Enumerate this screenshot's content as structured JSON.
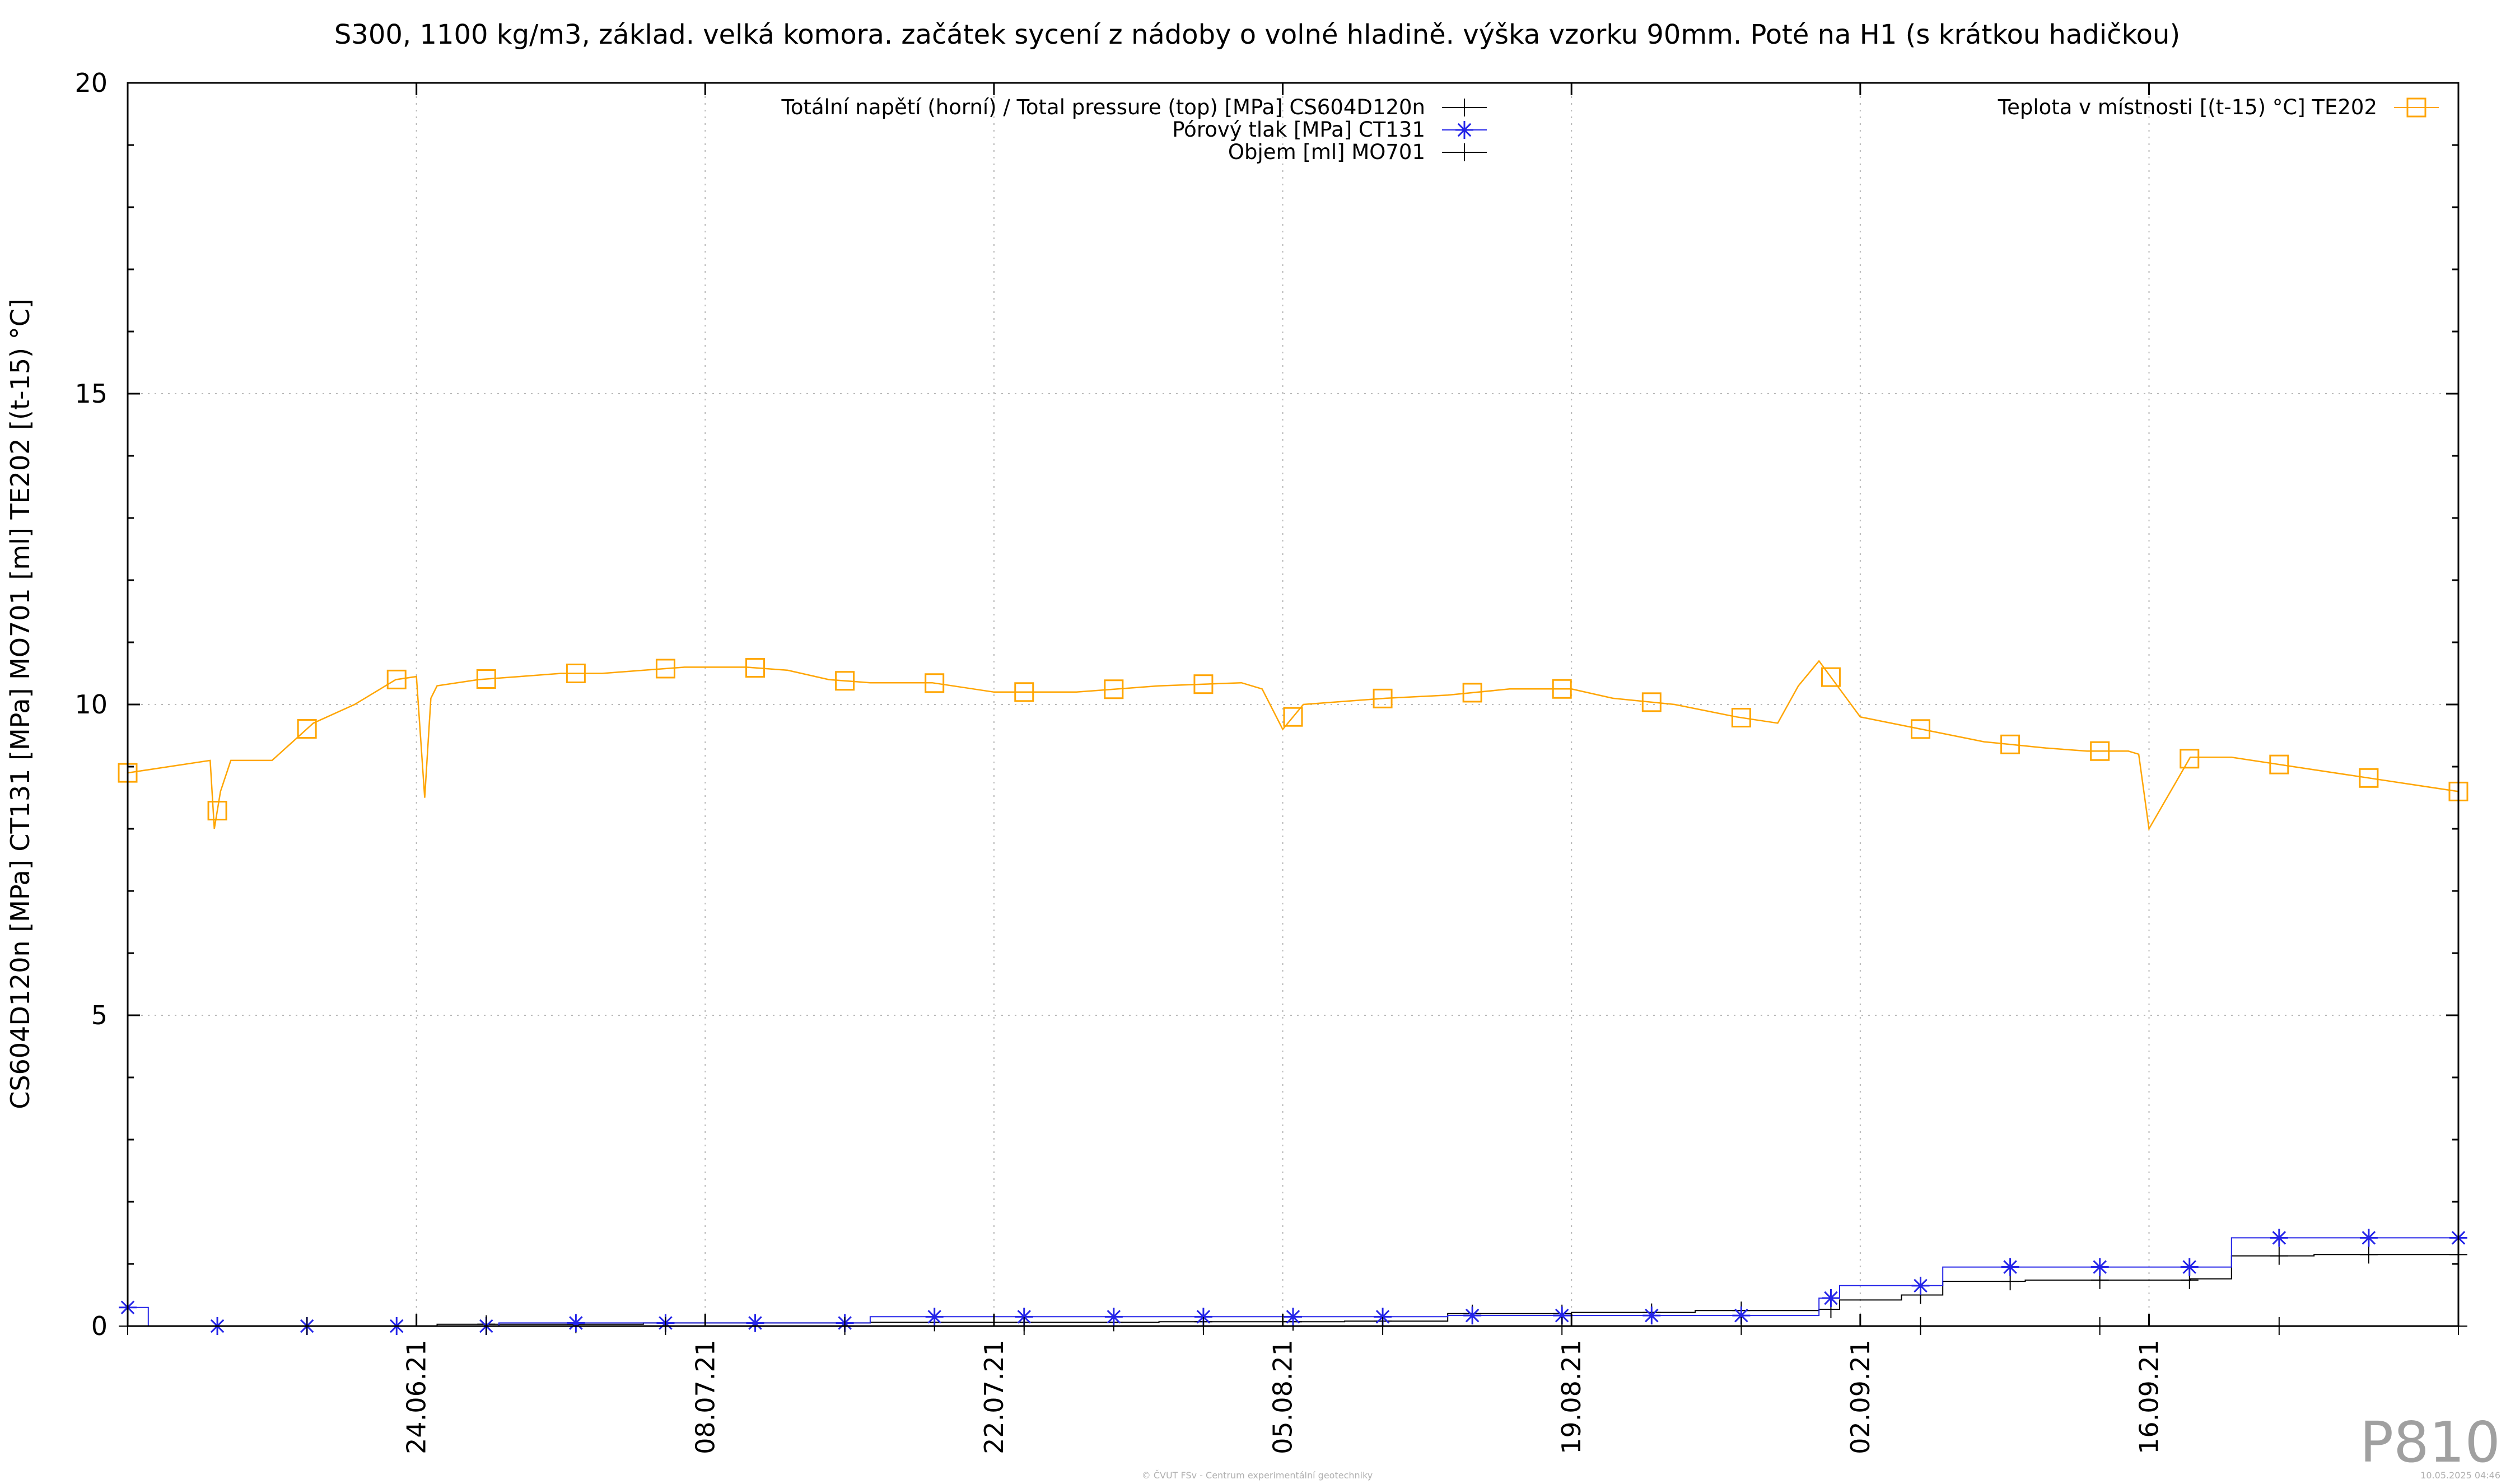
{
  "chart_data": {
    "type": "line",
    "title": "S300, 1100 kg/m3, základ. velká komora. začátek sycení z nádoby o volné hladině. výška vzorku 90mm. Poté na H1 (s krátkou hadičkou)",
    "ylabel": "CS604D120n [MPa] CT131 [MPa] MO701 [ml] TE202 [(t-15) °C]",
    "xlabel": "",
    "ylim": [
      0,
      20
    ],
    "xlim": [
      "2021-06-10",
      "2021-10-01"
    ],
    "y_ticks": [
      "0",
      "5",
      "10",
      "15",
      "20"
    ],
    "x_ticks": [
      {
        "date": "2021-06-24",
        "label": "24.06.21"
      },
      {
        "date": "2021-07-08",
        "label": "08.07.21"
      },
      {
        "date": "2021-07-22",
        "label": "22.07.21"
      },
      {
        "date": "2021-08-05",
        "label": "05.08.21"
      },
      {
        "date": "2021-08-19",
        "label": "19.08.21"
      },
      {
        "date": "2021-09-02",
        "label": "02.09.21"
      },
      {
        "date": "2021-09-16",
        "label": "16.09.21"
      }
    ],
    "grid": true,
    "legend_left_position": "top-center",
    "legend_right_position": "top-right",
    "series": [
      {
        "name": "Totální napětí (horní) / Total pressure (top) [MPa] CS604D120n",
        "color": "#000000",
        "marker": "plus",
        "x": [
          "2021-06-10",
          "2021-06-18",
          "2021-06-25",
          "2021-07-05",
          "2021-07-16",
          "2021-07-30",
          "2021-08-08",
          "2021-08-13",
          "2021-08-19",
          "2021-08-25",
          "2021-08-31",
          "2021-09-01",
          "2021-09-04",
          "2021-09-06",
          "2021-09-10",
          "2021-09-18",
          "2021-09-20",
          "2021-09-24",
          "2021-09-30",
          "2021-10-01"
        ],
        "y": [
          0.0,
          0.0,
          0.03,
          0.05,
          0.06,
          0.07,
          0.08,
          0.2,
          0.22,
          0.25,
          0.27,
          0.42,
          0.5,
          0.72,
          0.74,
          0.76,
          1.13,
          1.15,
          1.15,
          0.6
        ]
      },
      {
        "name": "Pórový tlak [MPa] CT131",
        "color": "#2424e8",
        "marker": "asterisk",
        "x": [
          "2021-06-10",
          "2021-06-11",
          "2021-06-28",
          "2021-07-16",
          "2021-08-13",
          "2021-08-31",
          "2021-09-01",
          "2021-09-05",
          "2021-09-06",
          "2021-09-19",
          "2021-09-20",
          "2021-10-01"
        ],
        "y": [
          0.3,
          0.0,
          0.05,
          0.15,
          0.17,
          0.45,
          0.65,
          0.65,
          0.95,
          0.95,
          1.42,
          1.42
        ]
      },
      {
        "name": "Objem [ml] MO701",
        "color": "#000000",
        "marker": "plus",
        "x": [
          "2021-06-10",
          "2021-10-01"
        ],
        "y": [
          0.0,
          0.0
        ]
      },
      {
        "name": "Teplota v místnosti [(t-15) °C] TE202",
        "color": "#ffa500",
        "marker": "square",
        "x": [
          "2021-06-10",
          "2021-06-12",
          "2021-06-14",
          "2021-06-14.2",
          "2021-06-14.5",
          "2021-06-15",
          "2021-06-17",
          "2021-06-18",
          "2021-06-19",
          "2021-06-21",
          "2021-06-23",
          "2021-06-24",
          "2021-06-24.4",
          "2021-06-24.7",
          "2021-06-25",
          "2021-06-27",
          "2021-06-29",
          "2021-07-01",
          "2021-07-03",
          "2021-07-05",
          "2021-07-07",
          "2021-07-10",
          "2021-07-12",
          "2021-07-14",
          "2021-07-16",
          "2021-07-19",
          "2021-07-22",
          "2021-07-26",
          "2021-07-30",
          "2021-08-03",
          "2021-08-04",
          "2021-08-05",
          "2021-08-06",
          "2021-08-08",
          "2021-08-10",
          "2021-08-13",
          "2021-08-16",
          "2021-08-19",
          "2021-08-21",
          "2021-08-24",
          "2021-08-27",
          "2021-08-28",
          "2021-08-29",
          "2021-08-30",
          "2021-08-31",
          "2021-09-02",
          "2021-09-05",
          "2021-09-08",
          "2021-09-11",
          "2021-09-13",
          "2021-09-15",
          "2021-09-15.5",
          "2021-09-16",
          "2021-09-18",
          "2021-09-20",
          "2021-09-23",
          "2021-09-27",
          "2021-10-01"
        ],
        "y": [
          8.9,
          9.0,
          9.1,
          8.0,
          8.6,
          9.1,
          9.1,
          9.4,
          9.7,
          10.0,
          10.4,
          10.45,
          8.5,
          10.1,
          10.3,
          10.4,
          10.45,
          10.5,
          10.5,
          10.55,
          10.6,
          10.6,
          10.55,
          10.4,
          10.35,
          10.35,
          10.2,
          10.2,
          10.3,
          10.35,
          10.25,
          9.6,
          10.0,
          10.05,
          10.1,
          10.15,
          10.25,
          10.25,
          10.1,
          10.0,
          9.8,
          9.75,
          9.7,
          10.3,
          10.7,
          9.8,
          9.6,
          9.4,
          9.3,
          9.25,
          9.25,
          9.2,
          8.0,
          9.15,
          9.15,
          9.0,
          8.8,
          8.6
        ]
      }
    ]
  },
  "watermark": "P810",
  "footer_left": "© ČVUT FSv - Centrum experimentální geotechniky",
  "footer_right": "10.05.2025 04:46"
}
